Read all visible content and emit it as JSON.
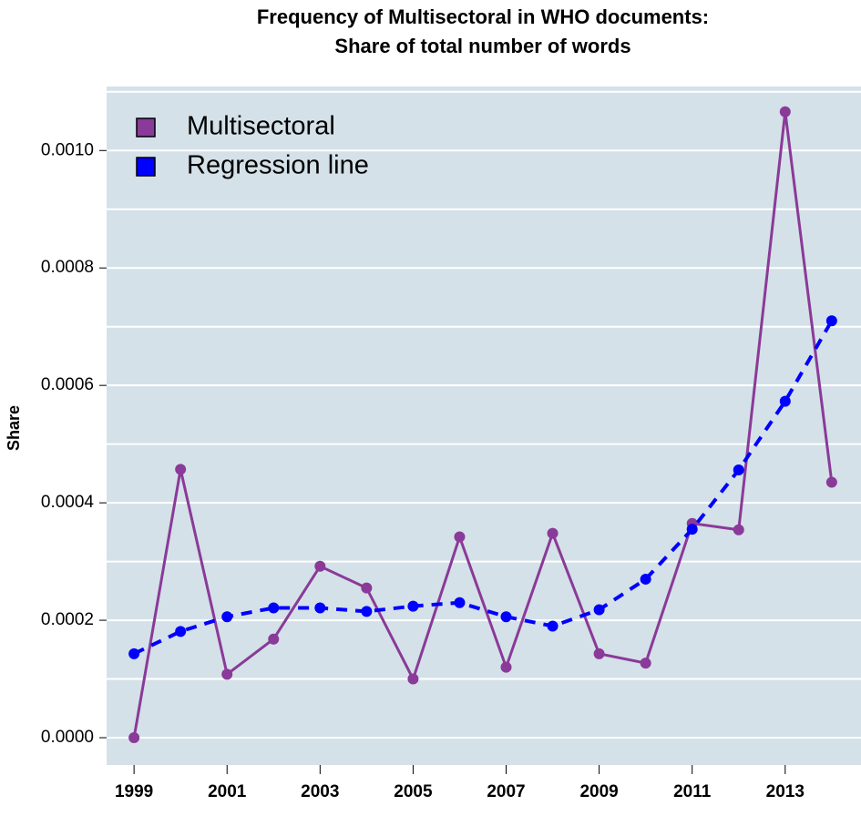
{
  "chart_data": {
    "type": "line",
    "title": "Frequency of Multisectoral in WHO documents:",
    "subtitle": "Share of total number of words",
    "ylabel": "Share",
    "x": [
      1999,
      2000,
      2001,
      2002,
      2003,
      2004,
      2005,
      2006,
      2007,
      2008,
      2009,
      2010,
      2011,
      2012,
      2013,
      2014
    ],
    "series": [
      {
        "name": "Multisectoral",
        "color": "#8a3a98",
        "dashed": false,
        "values": [
          0.0,
          0.000457,
          0.000108,
          0.000168,
          0.000292,
          0.000255,
          0.0001,
          0.000342,
          0.00012,
          0.000348,
          0.000143,
          0.000127,
          0.000365,
          0.000354,
          0.001066,
          0.000435
        ]
      },
      {
        "name": "Regression line",
        "color": "#0000ff",
        "dashed": true,
        "values": [
          0.000143,
          0.000181,
          0.000206,
          0.000221,
          0.000221,
          0.000215,
          0.000224,
          0.00023,
          0.000206,
          0.00019,
          0.000218,
          0.00027,
          0.000355,
          0.000456,
          0.000573,
          0.00071
        ]
      }
    ],
    "xlim": [
      1998.41,
      2014.63
    ],
    "xticks": [
      1999,
      2001,
      2003,
      2005,
      2007,
      2009,
      2011,
      2013
    ],
    "ylim": [
      -4.65e-05,
      0.001109
    ],
    "yticks": [
      {
        "value": 0,
        "label": "0.0000"
      },
      {
        "value": 0.0002,
        "label": "0.0002"
      },
      {
        "value": 0.0004,
        "label": "0.0004"
      },
      {
        "value": 0.0006,
        "label": "0.0006"
      },
      {
        "value": 0.0008,
        "label": "0.0008"
      },
      {
        "value": 0.001,
        "label": "0.0010"
      }
    ],
    "ygrid": [
      0,
      0.0001,
      0.0002,
      0.0003,
      0.0004,
      0.0005,
      0.0006,
      0.0007,
      0.0008,
      0.0009,
      0.001,
      0.0011
    ],
    "grid": true,
    "legend": "top-left",
    "background": "#d4e1e8"
  }
}
